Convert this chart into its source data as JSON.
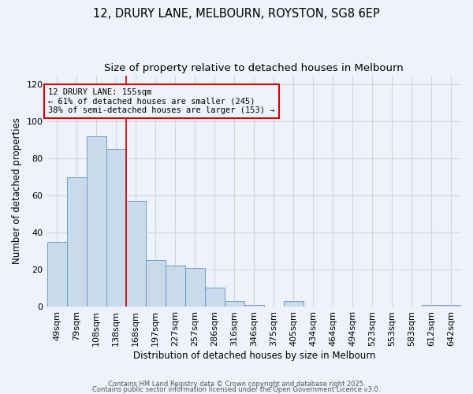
{
  "title": "12, DRURY LANE, MELBOURN, ROYSTON, SG8 6EP",
  "subtitle": "Size of property relative to detached houses in Melbourn",
  "xlabel": "Distribution of detached houses by size in Melbourn",
  "ylabel": "Number of detached properties",
  "categories": [
    "49sqm",
    "79sqm",
    "108sqm",
    "138sqm",
    "168sqm",
    "197sqm",
    "227sqm",
    "257sqm",
    "286sqm",
    "316sqm",
    "346sqm",
    "375sqm",
    "405sqm",
    "434sqm",
    "464sqm",
    "494sqm",
    "523sqm",
    "553sqm",
    "583sqm",
    "612sqm",
    "642sqm"
  ],
  "values": [
    35,
    70,
    92,
    85,
    57,
    25,
    22,
    21,
    10,
    3,
    1,
    0,
    3,
    0,
    0,
    0,
    0,
    0,
    0,
    1,
    1
  ],
  "bar_color": "#c9daea",
  "bar_edge_color": "#6a9fc8",
  "bar_edge_width": 0.7,
  "vline_color": "#cc0000",
  "annotation_text": "12 DRURY LANE: 155sqm\n← 61% of detached houses are smaller (245)\n38% of semi-detached houses are larger (153) →",
  "annotation_box_color": "#cc0000",
  "ylim": [
    0,
    125
  ],
  "yticks": [
    0,
    20,
    40,
    60,
    80,
    100,
    120
  ],
  "grid_color": "#ccd5e8",
  "background_color": "#eef2fa",
  "footer_line1": "Contains HM Land Registry data © Crown copyright and database right 2025.",
  "footer_line2": "Contains public sector information licensed under the Open Government Licence v3.0.",
  "title_fontsize": 10.5,
  "subtitle_fontsize": 9.5
}
